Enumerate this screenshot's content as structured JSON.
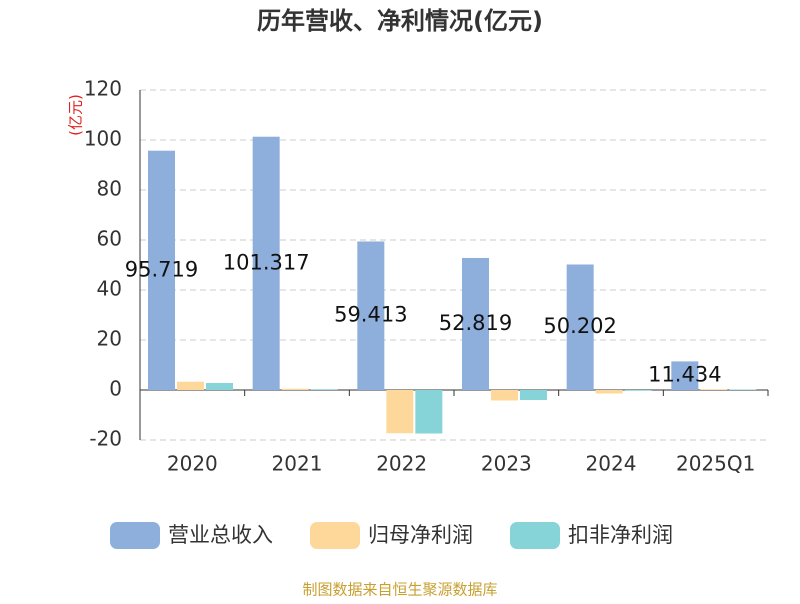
{
  "chart_data": {
    "type": "bar",
    "title": "历年营收、净利情况(亿元)",
    "y_label": "(亿元)",
    "categories": [
      "2020",
      "2021",
      "2022",
      "2023",
      "2024",
      "2025Q1"
    ],
    "series": [
      {
        "name": "营业总收入",
        "color": "#8eaedc",
        "values": [
          95.719,
          101.317,
          59.413,
          52.819,
          50.202,
          11.434
        ],
        "show_labels": true
      },
      {
        "name": "归母净利润",
        "color": "#fdd89a",
        "values": [
          3.3,
          0.5,
          -17.3,
          -4.2,
          -1.4,
          0.3
        ],
        "show_labels": false
      },
      {
        "name": "扣非净利润",
        "color": "#86d4d8",
        "values": [
          2.8,
          0.3,
          -17.4,
          -4.0,
          -0.3,
          0.2
        ],
        "show_labels": false
      }
    ],
    "ylim": [
      -20,
      120
    ],
    "yticks": [
      -20,
      0,
      20,
      40,
      60,
      80,
      100,
      120
    ],
    "grid": true,
    "legend": "bottom",
    "source": "制图数据来自恒生聚源数据库"
  }
}
